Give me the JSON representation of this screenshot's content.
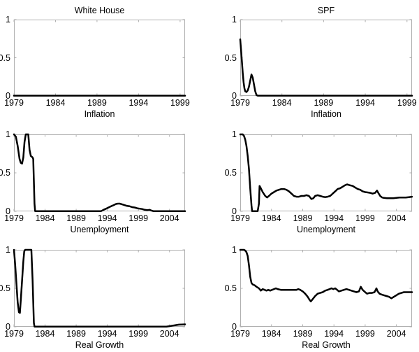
{
  "figure": {
    "background": "#ffffff",
    "axis_color": "#b0b0b0",
    "line_color": "#000000",
    "text_color": "#000000"
  },
  "chart_data": [
    {
      "type": "line",
      "title": "White House",
      "xlabel": "Inflation",
      "xlim": [
        1979,
        1999.6
      ],
      "ylim": [
        0,
        1
      ],
      "xticks": [
        1979,
        1984,
        1989,
        1994,
        1999
      ],
      "yticks": [
        0,
        0.5,
        1
      ],
      "grid": false,
      "series": [
        {
          "name": "white-house-inflation-probability",
          "points": [
            [
              1979,
              0.003
            ],
            [
              1999.6,
              0.003
            ]
          ]
        }
      ]
    },
    {
      "type": "line",
      "title": "SPF",
      "xlabel": "Inflation",
      "xlim": [
        1979,
        1999.6
      ],
      "ylim": [
        0,
        1
      ],
      "xticks": [
        1979,
        1984,
        1989,
        1994,
        1999
      ],
      "yticks": [
        0,
        0.5,
        1
      ],
      "grid": false,
      "series": [
        {
          "name": "spf-inflation-probability",
          "points": [
            [
              1979,
              0.74
            ],
            [
              1979.1,
              0.6
            ],
            [
              1979.2,
              0.45
            ],
            [
              1979.3,
              0.3
            ],
            [
              1979.4,
              0.18
            ],
            [
              1979.5,
              0.1
            ],
            [
              1979.6,
              0.06
            ],
            [
              1979.75,
              0.05
            ],
            [
              1979.9,
              0.07
            ],
            [
              1980.05,
              0.12
            ],
            [
              1980.2,
              0.2
            ],
            [
              1980.35,
              0.28
            ],
            [
              1980.5,
              0.24
            ],
            [
              1980.65,
              0.15
            ],
            [
              1980.8,
              0.06
            ],
            [
              1980.95,
              0.01
            ],
            [
              1981.1,
              0.003
            ],
            [
              1999.6,
              0.003
            ]
          ]
        }
      ]
    },
    {
      "type": "line",
      "title": "",
      "xlabel": "Unemployment",
      "xlim": [
        1979,
        2006.5
      ],
      "ylim": [
        0,
        1
      ],
      "xticks": [
        1979,
        1984,
        1989,
        1994,
        1999,
        2004
      ],
      "yticks": [
        0,
        0.5,
        1
      ],
      "grid": false,
      "series": [
        {
          "name": "white-house-unemployment-probability",
          "points": [
            [
              1979,
              1
            ],
            [
              1979.3,
              0.97
            ],
            [
              1979.6,
              0.85
            ],
            [
              1979.9,
              0.68
            ],
            [
              1980.1,
              0.63
            ],
            [
              1980.3,
              0.62
            ],
            [
              1980.5,
              0.7
            ],
            [
              1980.7,
              0.9
            ],
            [
              1980.9,
              1
            ],
            [
              1981.3,
              1
            ],
            [
              1981.5,
              0.8
            ],
            [
              1981.7,
              0.72
            ],
            [
              1982,
              0.7
            ],
            [
              1982.1,
              0.68
            ],
            [
              1982.3,
              0.1
            ],
            [
              1982.4,
              0.003
            ],
            [
              1993,
              0.003
            ],
            [
              1993.4,
              0.02
            ],
            [
              1993.8,
              0.035
            ],
            [
              1994.2,
              0.05
            ],
            [
              1994.6,
              0.065
            ],
            [
              1995,
              0.08
            ],
            [
              1995.4,
              0.095
            ],
            [
              1995.7,
              0.1
            ],
            [
              1996,
              0.1
            ],
            [
              1996.4,
              0.09
            ],
            [
              1996.8,
              0.08
            ],
            [
              1997.2,
              0.07
            ],
            [
              1997.6,
              0.065
            ],
            [
              1998,
              0.055
            ],
            [
              1998.4,
              0.05
            ],
            [
              1998.8,
              0.04
            ],
            [
              1999.2,
              0.035
            ],
            [
              1999.6,
              0.03
            ],
            [
              2000,
              0.02
            ],
            [
              2000.4,
              0.015
            ],
            [
              2000.8,
              0.02
            ],
            [
              2001.1,
              0.01
            ],
            [
              2001.4,
              0.003
            ],
            [
              2006.5,
              0.003
            ]
          ]
        }
      ]
    },
    {
      "type": "line",
      "title": "",
      "xlabel": "Unemployment",
      "xlim": [
        1979,
        2006.5
      ],
      "ylim": [
        0,
        1
      ],
      "xticks": [
        1979,
        1984,
        1989,
        1994,
        1999,
        2004
      ],
      "yticks": [
        0,
        0.5,
        1
      ],
      "grid": false,
      "series": [
        {
          "name": "spf-unemployment-probability",
          "points": [
            [
              1979,
              1
            ],
            [
              1979.4,
              1
            ],
            [
              1979.6,
              0.98
            ],
            [
              1979.8,
              0.93
            ],
            [
              1980,
              0.85
            ],
            [
              1980.2,
              0.72
            ],
            [
              1980.4,
              0.55
            ],
            [
              1980.6,
              0.3
            ],
            [
              1980.8,
              0.08
            ],
            [
              1980.9,
              0.003
            ],
            [
              1981.8,
              0.003
            ],
            [
              1982,
              0.1
            ],
            [
              1982.1,
              0.33
            ],
            [
              1982.3,
              0.3
            ],
            [
              1982.6,
              0.25
            ],
            [
              1983,
              0.2
            ],
            [
              1983.3,
              0.18
            ],
            [
              1983.6,
              0.2
            ],
            [
              1984,
              0.23
            ],
            [
              1984.4,
              0.25
            ],
            [
              1984.8,
              0.27
            ],
            [
              1985.2,
              0.28
            ],
            [
              1985.6,
              0.29
            ],
            [
              1986,
              0.29
            ],
            [
              1986.4,
              0.28
            ],
            [
              1986.8,
              0.26
            ],
            [
              1987.2,
              0.23
            ],
            [
              1987.6,
              0.2
            ],
            [
              1988,
              0.19
            ],
            [
              1988.4,
              0.19
            ],
            [
              1988.8,
              0.2
            ],
            [
              1989.2,
              0.2
            ],
            [
              1989.6,
              0.21
            ],
            [
              1990,
              0.2
            ],
            [
              1990.4,
              0.16
            ],
            [
              1990.7,
              0.17
            ],
            [
              1991,
              0.2
            ],
            [
              1991.4,
              0.21
            ],
            [
              1991.8,
              0.2
            ],
            [
              1992.2,
              0.19
            ],
            [
              1992.6,
              0.185
            ],
            [
              1993,
              0.19
            ],
            [
              1993.4,
              0.2
            ],
            [
              1993.8,
              0.23
            ],
            [
              1994.2,
              0.26
            ],
            [
              1994.6,
              0.29
            ],
            [
              1995,
              0.3
            ],
            [
              1995.4,
              0.32
            ],
            [
              1995.8,
              0.34
            ],
            [
              1996.1,
              0.35
            ],
            [
              1996.5,
              0.34
            ],
            [
              1997,
              0.33
            ],
            [
              1997.4,
              0.31
            ],
            [
              1997.8,
              0.29
            ],
            [
              1998.2,
              0.28
            ],
            [
              1998.6,
              0.26
            ],
            [
              1999,
              0.25
            ],
            [
              1999.4,
              0.245
            ],
            [
              1999.8,
              0.24
            ],
            [
              2000.2,
              0.23
            ],
            [
              2000.6,
              0.24
            ],
            [
              2000.9,
              0.27
            ],
            [
              2001.1,
              0.24
            ],
            [
              2001.4,
              0.2
            ],
            [
              2001.7,
              0.18
            ],
            [
              2002,
              0.175
            ],
            [
              2002.5,
              0.17
            ],
            [
              2003,
              0.17
            ],
            [
              2003.5,
              0.17
            ],
            [
              2004,
              0.175
            ],
            [
              2004.5,
              0.18
            ],
            [
              2005,
              0.18
            ],
            [
              2005.5,
              0.18
            ],
            [
              2006,
              0.185
            ],
            [
              2006.5,
              0.19
            ]
          ]
        }
      ]
    },
    {
      "type": "line",
      "title": "",
      "xlabel": "Real Growth",
      "xlim": [
        1979,
        2006.5
      ],
      "ylim": [
        0,
        1
      ],
      "xticks": [
        1979,
        1984,
        1989,
        1994,
        1999,
        2004
      ],
      "yticks": [
        0,
        0.5,
        1
      ],
      "grid": false,
      "series": [
        {
          "name": "white-house-real-growth-probability",
          "points": [
            [
              1979,
              1
            ],
            [
              1979.2,
              0.8
            ],
            [
              1979.4,
              0.55
            ],
            [
              1979.6,
              0.32
            ],
            [
              1979.8,
              0.19
            ],
            [
              1979.95,
              0.18
            ],
            [
              1980.1,
              0.35
            ],
            [
              1980.3,
              0.6
            ],
            [
              1980.5,
              0.85
            ],
            [
              1980.65,
              0.98
            ],
            [
              1980.8,
              1
            ],
            [
              1981.8,
              1
            ],
            [
              1982,
              0.6
            ],
            [
              1982.2,
              0.05
            ],
            [
              1982.3,
              0.003
            ],
            [
              2003.5,
              0.003
            ],
            [
              2004,
              0.008
            ],
            [
              2004.5,
              0.015
            ],
            [
              2005,
              0.022
            ],
            [
              2005.5,
              0.028
            ],
            [
              2006,
              0.03
            ],
            [
              2006.5,
              0.032
            ]
          ]
        }
      ]
    },
    {
      "type": "line",
      "title": "",
      "xlabel": "Real Growth",
      "xlim": [
        1979,
        2006.5
      ],
      "ylim": [
        0,
        1
      ],
      "xticks": [
        1979,
        1984,
        1989,
        1994,
        1999,
        2004
      ],
      "yticks": [
        0,
        0.5,
        1
      ],
      "grid": false,
      "series": [
        {
          "name": "spf-real-growth-probability",
          "points": [
            [
              1979,
              1
            ],
            [
              1979.6,
              1
            ],
            [
              1979.8,
              0.99
            ],
            [
              1980,
              0.97
            ],
            [
              1980.2,
              0.92
            ],
            [
              1980.4,
              0.8
            ],
            [
              1980.6,
              0.65
            ],
            [
              1980.8,
              0.57
            ],
            [
              1981,
              0.55
            ],
            [
              1981.3,
              0.54
            ],
            [
              1981.6,
              0.52
            ],
            [
              1982,
              0.5
            ],
            [
              1982.3,
              0.47
            ],
            [
              1982.6,
              0.49
            ],
            [
              1982.9,
              0.48
            ],
            [
              1983.2,
              0.47
            ],
            [
              1983.5,
              0.48
            ],
            [
              1983.8,
              0.47
            ],
            [
              1984.1,
              0.48
            ],
            [
              1984.4,
              0.49
            ],
            [
              1984.7,
              0.5
            ],
            [
              1985,
              0.49
            ],
            [
              1985.5,
              0.48
            ],
            [
              1986,
              0.48
            ],
            [
              1986.5,
              0.48
            ],
            [
              1987,
              0.48
            ],
            [
              1987.5,
              0.48
            ],
            [
              1988,
              0.48
            ],
            [
              1988.3,
              0.49
            ],
            [
              1988.6,
              0.48
            ],
            [
              1989,
              0.46
            ],
            [
              1989.4,
              0.43
            ],
            [
              1989.8,
              0.39
            ],
            [
              1990.1,
              0.35
            ],
            [
              1990.3,
              0.33
            ],
            [
              1990.6,
              0.36
            ],
            [
              1991,
              0.4
            ],
            [
              1991.4,
              0.43
            ],
            [
              1991.8,
              0.44
            ],
            [
              1992.2,
              0.45
            ],
            [
              1992.6,
              0.47
            ],
            [
              1993,
              0.48
            ],
            [
              1993.3,
              0.49
            ],
            [
              1993.6,
              0.5
            ],
            [
              1993.9,
              0.49
            ],
            [
              1994.2,
              0.5
            ],
            [
              1994.5,
              0.48
            ],
            [
              1994.8,
              0.46
            ],
            [
              1995.2,
              0.47
            ],
            [
              1995.6,
              0.48
            ],
            [
              1996,
              0.49
            ],
            [
              1996.4,
              0.48
            ],
            [
              1996.8,
              0.47
            ],
            [
              1997.2,
              0.46
            ],
            [
              1997.6,
              0.45
            ],
            [
              1998,
              0.46
            ],
            [
              1998.3,
              0.52
            ],
            [
              1998.6,
              0.48
            ],
            [
              1999,
              0.45
            ],
            [
              1999.3,
              0.43
            ],
            [
              1999.7,
              0.44
            ],
            [
              2000.1,
              0.44
            ],
            [
              2000.5,
              0.45
            ],
            [
              2000.8,
              0.5
            ],
            [
              2001,
              0.46
            ],
            [
              2001.3,
              0.43
            ],
            [
              2001.6,
              0.42
            ],
            [
              2002,
              0.41
            ],
            [
              2002.4,
              0.4
            ],
            [
              2002.8,
              0.39
            ],
            [
              2003.2,
              0.37
            ],
            [
              2003.6,
              0.39
            ],
            [
              2004,
              0.41
            ],
            [
              2004.4,
              0.43
            ],
            [
              2004.8,
              0.44
            ],
            [
              2005.2,
              0.45
            ],
            [
              2005.6,
              0.45
            ],
            [
              2006,
              0.45
            ],
            [
              2006.5,
              0.45
            ]
          ]
        }
      ]
    }
  ]
}
